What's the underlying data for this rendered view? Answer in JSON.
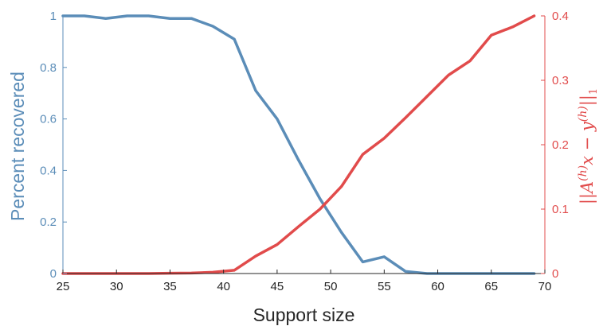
{
  "chart_data": {
    "type": "line",
    "xlabel": "Support size",
    "ylabel_left": "Percent recovered",
    "ylabel_right": {
      "prefix": "||A",
      "superscript_1": "(h)",
      "middle": "x − y",
      "superscript_2": "(h)",
      "suffix": "||",
      "subscript": "1"
    },
    "xlim": [
      25,
      70
    ],
    "ylim_left": [
      0,
      1
    ],
    "ylim_right": [
      0,
      0.4
    ],
    "x_ticks": [
      "25",
      "30",
      "35",
      "40",
      "45",
      "50",
      "55",
      "60",
      "65",
      "70"
    ],
    "y_ticks_left": [
      "0",
      "0.2",
      "0.4",
      "0.6",
      "0.8",
      "1"
    ],
    "y_ticks_right": [
      "0",
      "0.1",
      "0.2",
      "0.3",
      "0.4"
    ],
    "grid": false,
    "colors": {
      "left": "#5b8db8",
      "right": "#e14b4b",
      "axis": "#262626"
    },
    "series": [
      {
        "axis": "left",
        "x": [
          25,
          27,
          29,
          31,
          33,
          35,
          37,
          39,
          41,
          43,
          45,
          47,
          49,
          51,
          53,
          55,
          57,
          59,
          61,
          63,
          65,
          67,
          69
        ],
        "values": [
          1.0,
          1.0,
          0.99,
          1.0,
          1.0,
          0.99,
          0.99,
          0.96,
          0.91,
          0.71,
          0.6,
          0.44,
          0.29,
          0.16,
          0.045,
          0.065,
          0.008,
          0.0,
          0.0,
          0.0,
          0.0,
          0.0,
          0.0
        ]
      },
      {
        "axis": "right",
        "x": [
          25,
          27,
          29,
          31,
          33,
          35,
          37,
          39,
          41,
          43,
          45,
          47,
          49,
          51,
          53,
          55,
          57,
          59,
          61,
          63,
          65,
          67,
          69
        ],
        "values": [
          0.0,
          0.0,
          0.0,
          0.0,
          0.0,
          0.0005,
          0.0008,
          0.002,
          0.005,
          0.027,
          0.045,
          0.073,
          0.1,
          0.135,
          0.185,
          0.21,
          0.242,
          0.275,
          0.308,
          0.33,
          0.37,
          0.383,
          0.4
        ]
      }
    ]
  }
}
